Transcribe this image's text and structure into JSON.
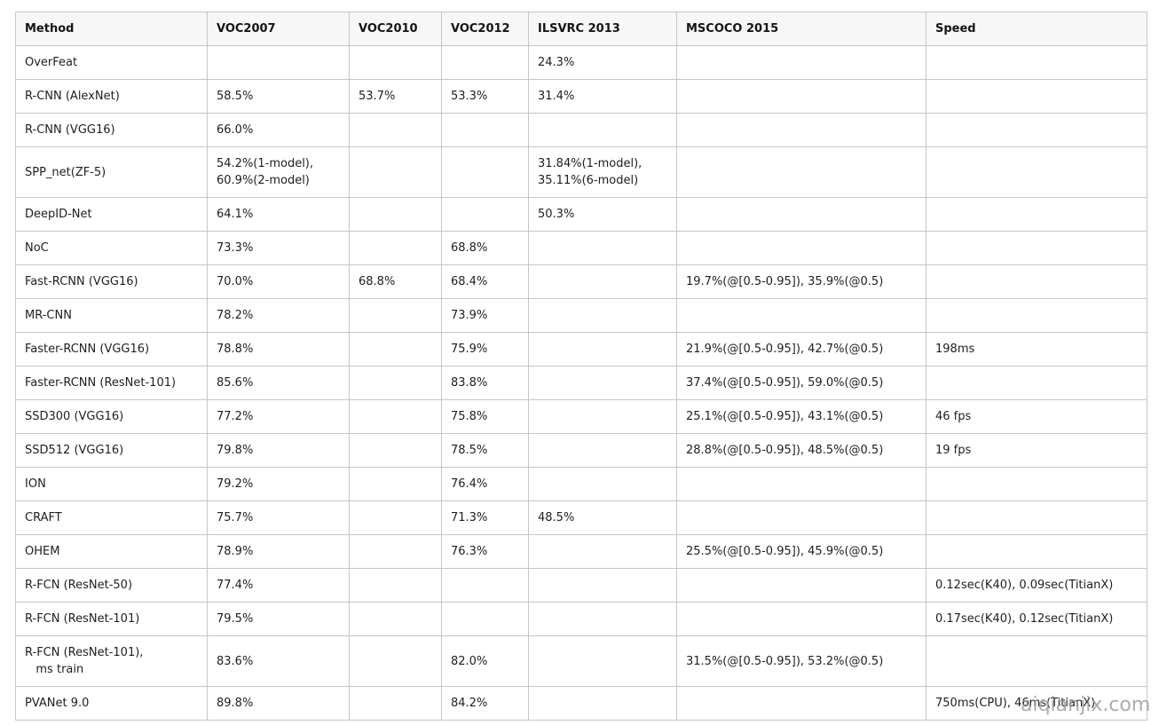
{
  "colors": {
    "page_background": "#ffffff",
    "table_border": "#c6c6c6",
    "header_background": "#f7f7f7",
    "header_text": "#141414",
    "cell_text": "#1e1e1e",
    "watermark_text": "#9b9b9b"
  },
  "watermark": {
    "text": "aiqianjix.com"
  },
  "table": {
    "columns": [
      {
        "label": "Method"
      },
      {
        "label": "VOC2007"
      },
      {
        "label": "VOC2010"
      },
      {
        "label": "VOC2012"
      },
      {
        "label": "ILSVRC 2013"
      },
      {
        "label": "MSCOCO 2015"
      },
      {
        "label": "Speed"
      }
    ],
    "rows": [
      {
        "tall": false,
        "cells": [
          "OverFeat",
          "",
          "",
          "",
          "24.3%",
          "",
          ""
        ]
      },
      {
        "tall": false,
        "cells": [
          "R-CNN (AlexNet)",
          "58.5%",
          "53.7%",
          "53.3%",
          "31.4%",
          "",
          ""
        ]
      },
      {
        "tall": false,
        "cells": [
          "R-CNN (VGG16)",
          "66.0%",
          "",
          "",
          "",
          "",
          ""
        ]
      },
      {
        "tall": true,
        "cells": [
          "SPP_net(ZF-5)",
          "54.2%(1-model),\n60.9%(2-model)",
          "",
          "",
          "31.84%(1-model),\n35.11%(6-model)",
          "",
          ""
        ]
      },
      {
        "tall": false,
        "cells": [
          "DeepID-Net",
          "64.1%",
          "",
          "",
          "50.3%",
          "",
          ""
        ]
      },
      {
        "tall": false,
        "cells": [
          "NoC",
          "73.3%",
          "",
          "68.8%",
          "",
          "",
          ""
        ]
      },
      {
        "tall": false,
        "cells": [
          "Fast-RCNN (VGG16)",
          "70.0%",
          "68.8%",
          "68.4%",
          "",
          "19.7%(@[0.5-0.95]), 35.9%(@0.5)",
          ""
        ]
      },
      {
        "tall": false,
        "cells": [
          "MR-CNN",
          "78.2%",
          "",
          "73.9%",
          "",
          "",
          ""
        ]
      },
      {
        "tall": false,
        "cells": [
          "Faster-RCNN (VGG16)",
          "78.8%",
          "",
          "75.9%",
          "",
          "21.9%(@[0.5-0.95]), 42.7%(@0.5)",
          "198ms"
        ]
      },
      {
        "tall": false,
        "cells": [
          "Faster-RCNN (ResNet-101)",
          "85.6%",
          "",
          "83.8%",
          "",
          "37.4%(@[0.5-0.95]), 59.0%(@0.5)",
          ""
        ]
      },
      {
        "tall": false,
        "cells": [
          "SSD300 (VGG16)",
          "77.2%",
          "",
          "75.8%",
          "",
          "25.1%(@[0.5-0.95]), 43.1%(@0.5)",
          "46 fps"
        ]
      },
      {
        "tall": false,
        "cells": [
          "SSD512 (VGG16)",
          "79.8%",
          "",
          "78.5%",
          "",
          "28.8%(@[0.5-0.95]), 48.5%(@0.5)",
          "19 fps"
        ]
      },
      {
        "tall": false,
        "cells": [
          "ION",
          "79.2%",
          "",
          "76.4%",
          "",
          "",
          ""
        ]
      },
      {
        "tall": false,
        "cells": [
          "CRAFT",
          "75.7%",
          "",
          "71.3%",
          "48.5%",
          "",
          ""
        ]
      },
      {
        "tall": false,
        "cells": [
          "OHEM",
          "78.9%",
          "",
          "76.3%",
          "",
          "25.5%(@[0.5-0.95]), 45.9%(@0.5)",
          ""
        ]
      },
      {
        "tall": false,
        "cells": [
          "R-FCN (ResNet-50)",
          "77.4%",
          "",
          "",
          "",
          "",
          "0.12sec(K40), 0.09sec(TitianX)"
        ]
      },
      {
        "tall": false,
        "cells": [
          "R-FCN (ResNet-101)",
          "79.5%",
          "",
          "",
          "",
          "",
          "0.17sec(K40), 0.12sec(TitianX)"
        ]
      },
      {
        "tall": true,
        "cells": [
          "R-FCN (ResNet-101),\n   ms train",
          "83.6%",
          "",
          "82.0%",
          "",
          "31.5%(@[0.5-0.95]), 53.2%(@0.5)",
          ""
        ]
      },
      {
        "tall": false,
        "cells": [
          "PVANet 9.0",
          "89.8%",
          "",
          "84.2%",
          "",
          "",
          "750ms(CPU), 46ms(TitianX)"
        ]
      }
    ]
  }
}
